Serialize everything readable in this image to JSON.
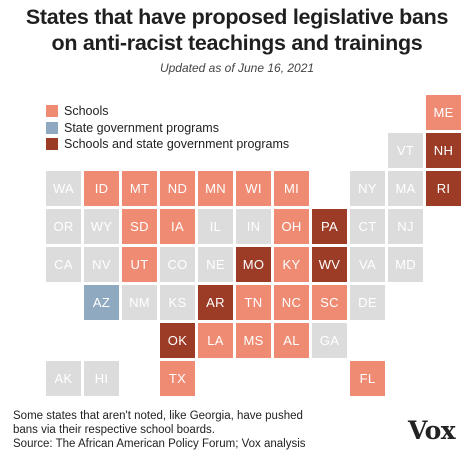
{
  "title": {
    "line1": "States that have proposed legislative bans",
    "line2": "on anti-racist teachings and trainings"
  },
  "subtitle": "Updated as of June 16, 2021",
  "legend": [
    {
      "label": "Schools",
      "category": "schools"
    },
    {
      "label": "State government programs",
      "category": "state"
    },
    {
      "label": "Schools and state government programs",
      "category": "both"
    }
  ],
  "colors": {
    "schools": "#ef8b73",
    "state": "#8fa9c0",
    "both": "#9c3b26",
    "none": "#dcdcdc"
  },
  "states": [
    {
      "abbr": "ME",
      "row": 0,
      "col": 11,
      "category": "schools"
    },
    {
      "abbr": "VT",
      "row": 1,
      "col": 10,
      "category": "none"
    },
    {
      "abbr": "NH",
      "row": 1,
      "col": 11,
      "category": "both"
    },
    {
      "abbr": "WA",
      "row": 2,
      "col": 1,
      "category": "none"
    },
    {
      "abbr": "ID",
      "row": 2,
      "col": 2,
      "category": "schools"
    },
    {
      "abbr": "MT",
      "row": 2,
      "col": 3,
      "category": "schools"
    },
    {
      "abbr": "ND",
      "row": 2,
      "col": 4,
      "category": "schools"
    },
    {
      "abbr": "MN",
      "row": 2,
      "col": 5,
      "category": "schools"
    },
    {
      "abbr": "WI",
      "row": 2,
      "col": 6,
      "category": "schools"
    },
    {
      "abbr": "MI",
      "row": 2,
      "col": 7,
      "category": "schools"
    },
    {
      "abbr": "NY",
      "row": 2,
      "col": 9,
      "category": "none"
    },
    {
      "abbr": "MA",
      "row": 2,
      "col": 10,
      "category": "none"
    },
    {
      "abbr": "RI",
      "row": 2,
      "col": 11,
      "category": "both"
    },
    {
      "abbr": "OR",
      "row": 3,
      "col": 1,
      "category": "none"
    },
    {
      "abbr": "WY",
      "row": 3,
      "col": 2,
      "category": "none"
    },
    {
      "abbr": "SD",
      "row": 3,
      "col": 3,
      "category": "schools"
    },
    {
      "abbr": "IA",
      "row": 3,
      "col": 4,
      "category": "schools"
    },
    {
      "abbr": "IL",
      "row": 3,
      "col": 5,
      "category": "none"
    },
    {
      "abbr": "IN",
      "row": 3,
      "col": 6,
      "category": "none"
    },
    {
      "abbr": "OH",
      "row": 3,
      "col": 7,
      "category": "schools"
    },
    {
      "abbr": "PA",
      "row": 3,
      "col": 8,
      "category": "both"
    },
    {
      "abbr": "CT",
      "row": 3,
      "col": 9,
      "category": "none"
    },
    {
      "abbr": "NJ",
      "row": 3,
      "col": 10,
      "category": "none"
    },
    {
      "abbr": "CA",
      "row": 4,
      "col": 1,
      "category": "none"
    },
    {
      "abbr": "NV",
      "row": 4,
      "col": 2,
      "category": "none"
    },
    {
      "abbr": "UT",
      "row": 4,
      "col": 3,
      "category": "schools"
    },
    {
      "abbr": "CO",
      "row": 4,
      "col": 4,
      "category": "none"
    },
    {
      "abbr": "NE",
      "row": 4,
      "col": 5,
      "category": "none"
    },
    {
      "abbr": "MO",
      "row": 4,
      "col": 6,
      "category": "both"
    },
    {
      "abbr": "KY",
      "row": 4,
      "col": 7,
      "category": "schools"
    },
    {
      "abbr": "WV",
      "row": 4,
      "col": 8,
      "category": "both"
    },
    {
      "abbr": "VA",
      "row": 4,
      "col": 9,
      "category": "none"
    },
    {
      "abbr": "MD",
      "row": 4,
      "col": 10,
      "category": "none"
    },
    {
      "abbr": "AZ",
      "row": 5,
      "col": 2,
      "category": "state"
    },
    {
      "abbr": "NM",
      "row": 5,
      "col": 3,
      "category": "none"
    },
    {
      "abbr": "KS",
      "row": 5,
      "col": 4,
      "category": "none"
    },
    {
      "abbr": "AR",
      "row": 5,
      "col": 5,
      "category": "both"
    },
    {
      "abbr": "TN",
      "row": 5,
      "col": 6,
      "category": "schools"
    },
    {
      "abbr": "NC",
      "row": 5,
      "col": 7,
      "category": "schools"
    },
    {
      "abbr": "SC",
      "row": 5,
      "col": 8,
      "category": "schools"
    },
    {
      "abbr": "DE",
      "row": 5,
      "col": 9,
      "category": "none"
    },
    {
      "abbr": "OK",
      "row": 6,
      "col": 4,
      "category": "both"
    },
    {
      "abbr": "LA",
      "row": 6,
      "col": 5,
      "category": "schools"
    },
    {
      "abbr": "MS",
      "row": 6,
      "col": 6,
      "category": "schools"
    },
    {
      "abbr": "AL",
      "row": 6,
      "col": 7,
      "category": "schools"
    },
    {
      "abbr": "GA",
      "row": 6,
      "col": 8,
      "category": "none"
    },
    {
      "abbr": "AK",
      "row": 7,
      "col": 1,
      "category": "none"
    },
    {
      "abbr": "HI",
      "row": 7,
      "col": 2,
      "category": "none"
    },
    {
      "abbr": "TX",
      "row": 7,
      "col": 4,
      "category": "schools"
    },
    {
      "abbr": "FL",
      "row": 7,
      "col": 9,
      "category": "schools"
    }
  ],
  "footnote": {
    "line1": "Some states that aren't noted, like Georgia, have pushed",
    "line2": "bans via their respective school boards.",
    "line3": "Source: The African American Policy Forum; Vox analysis"
  },
  "logo": "Vox"
}
